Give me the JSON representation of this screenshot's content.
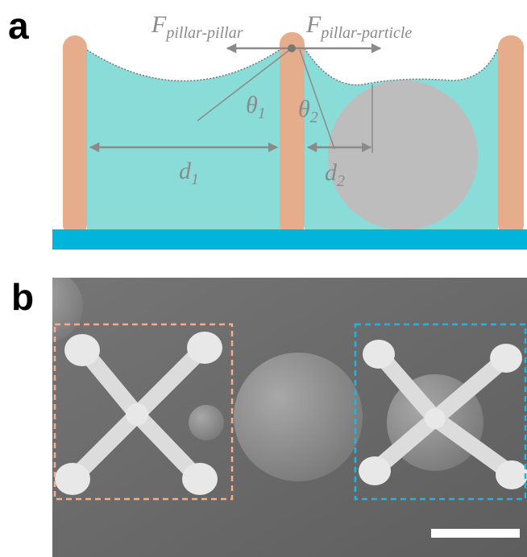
{
  "panel_a": {
    "label": "a",
    "force_pillar_pillar": {
      "symbol": "F",
      "subscript": "pillar-pillar"
    },
    "force_pillar_particle": {
      "symbol": "F",
      "subscript": "pillar-particle"
    },
    "theta_1": {
      "symbol": "θ",
      "subscript": "1"
    },
    "theta_2": {
      "symbol": "θ",
      "subscript": "2"
    },
    "distance_1": {
      "symbol": "d",
      "subscript": "1"
    },
    "distance_2": {
      "symbol": "d",
      "subscript": "2"
    }
  },
  "panel_b": {
    "label": "b"
  }
}
